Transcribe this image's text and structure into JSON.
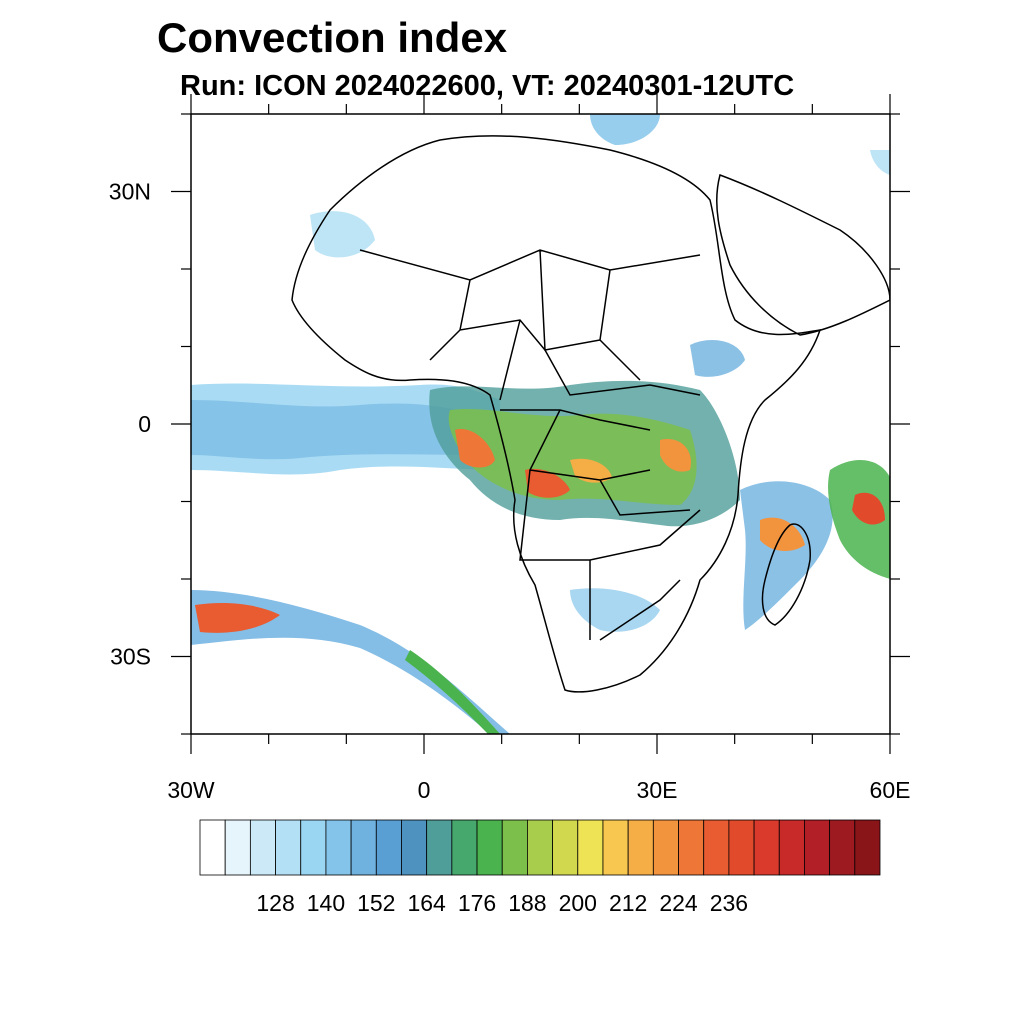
{
  "title": "Convection index",
  "subtitle": "Run: ICON 2024022600,  VT: 20240301-12UTC",
  "axes": {
    "lon_range": [
      -30,
      60
    ],
    "lat_range": [
      -40,
      40
    ],
    "x_ticks": [
      {
        "value": -30,
        "label": "30W"
      },
      {
        "value": 0,
        "label": "0"
      },
      {
        "value": 30,
        "label": "30E"
      },
      {
        "value": 60,
        "label": "60E"
      }
    ],
    "y_ticks": [
      {
        "value": 30,
        "label": "30N"
      },
      {
        "value": 0,
        "label": "0"
      },
      {
        "value": -30,
        "label": "30S"
      }
    ]
  },
  "colorbar": {
    "colors": [
      "#ffffff",
      "#e6f4fb",
      "#cbe9f7",
      "#b3e0f5",
      "#9ad6f2",
      "#85c4ea",
      "#6fb2e0",
      "#5a9fd4",
      "#4e93bf",
      "#4f9e9a",
      "#47a86e",
      "#4ab34d",
      "#7cbf4a",
      "#a8cc4c",
      "#d1d84e",
      "#ede355",
      "#f7c74f",
      "#f5ad46",
      "#f2933e",
      "#ee7636",
      "#e95b30",
      "#e24a2c",
      "#d93a2b",
      "#c82a2a",
      "#b31f27",
      "#9e1a21",
      "#8a1519"
    ],
    "labels": [
      "128",
      "140",
      "152",
      "164",
      "176",
      "188",
      "200",
      "212",
      "224",
      "236"
    ]
  }
}
